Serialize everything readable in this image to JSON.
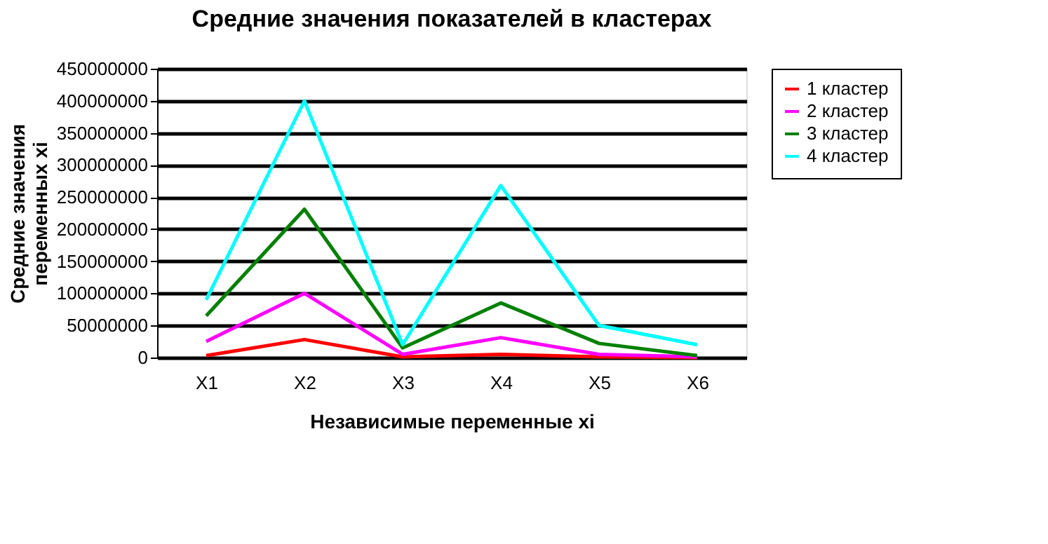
{
  "chart_data": {
    "type": "line",
    "title": "Средние значения показателей в кластерах",
    "xlabel": "Независимые переменные xi",
    "ylabel": "Средние значения переменных xi",
    "categories": [
      "X1",
      "X2",
      "X3",
      "X4",
      "X5",
      "X6"
    ],
    "series": [
      {
        "name": "1 кластер",
        "color": "#ff0000",
        "values": [
          3000000,
          28000000,
          1000000,
          5000000,
          1000000,
          0
        ]
      },
      {
        "name": "2 кластер",
        "color": "#ff00ff",
        "values": [
          25000000,
          100000000,
          5000000,
          31000000,
          5000000,
          1000000
        ]
      },
      {
        "name": "3 кластер",
        "color": "#008000",
        "values": [
          65000000,
          231000000,
          15000000,
          85000000,
          22000000,
          3000000
        ]
      },
      {
        "name": "4 кластер",
        "color": "#00ffff",
        "values": [
          90000000,
          400000000,
          20000000,
          268000000,
          50000000,
          20000000
        ]
      }
    ],
    "ylim": [
      0,
      450000000
    ],
    "yticks": [
      0,
      50000000,
      100000000,
      150000000,
      200000000,
      250000000,
      300000000,
      350000000,
      400000000,
      450000000
    ],
    "grid": "y",
    "legend": "right",
    "marker": "none",
    "line_style": "solid"
  }
}
